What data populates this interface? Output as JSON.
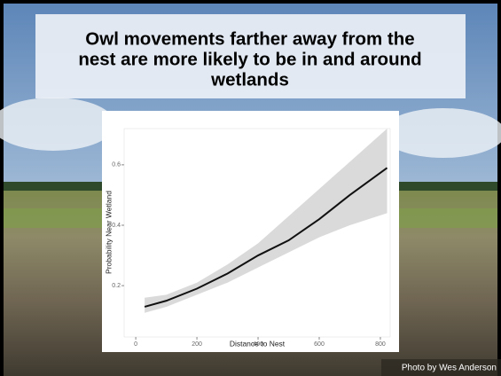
{
  "chart_data": {
    "type": "line",
    "title": [
      "Owl movements farther away from the",
      "nest are more likely to be in and around",
      "wetlands"
    ],
    "x_label": "Distance to Nest",
    "y_label": "Probability Near Wetland",
    "x": [
      29,
      100,
      200,
      300,
      400,
      500,
      600,
      700,
      822
    ],
    "series": [
      {
        "color": "#111111",
        "band_color": "#d6d6d6",
        "values": [
          0.13,
          0.15,
          0.19,
          0.24,
          0.3,
          0.35,
          0.42,
          0.5,
          0.59
        ],
        "lower": [
          0.11,
          0.13,
          0.17,
          0.21,
          0.26,
          0.31,
          0.36,
          0.4,
          0.44
        ],
        "upper": [
          0.16,
          0.17,
          0.21,
          0.27,
          0.34,
          0.43,
          0.52,
          0.61,
          0.72
        ]
      }
    ],
    "xlim": [
      -38,
      832
    ],
    "ylim": [
      0.03,
      0.72
    ],
    "xticks": [
      0,
      200,
      400,
      600,
      800
    ],
    "yticks": [
      0.2,
      0.4,
      0.6
    ],
    "grid": false
  },
  "photo_credit": "Photo by Wes Anderson"
}
